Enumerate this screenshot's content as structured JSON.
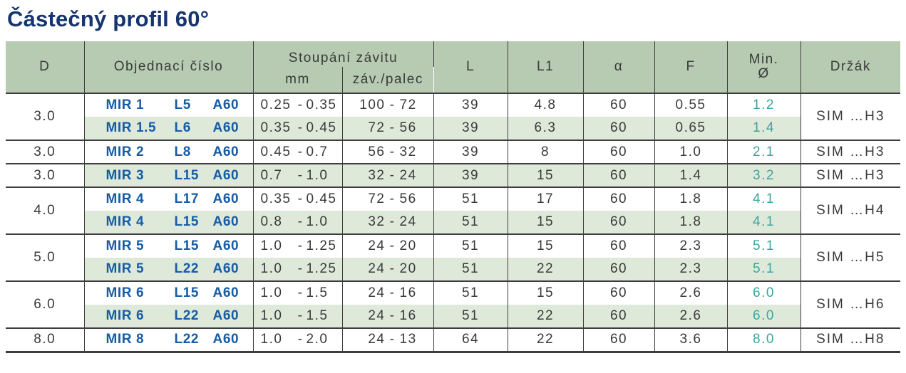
{
  "title": "Částečný profil 60°",
  "colors": {
    "title": "#16356D",
    "header_bg": "#B6CBB1",
    "row_alt_bg": "#DFE9DA",
    "order_blue": "#165CA6",
    "min_diameter_teal": "#3EA49F",
    "text": "#3A3A3A",
    "line": "#3D3D3D"
  },
  "table": {
    "separator": "-",
    "headers": {
      "d": "D",
      "order": "Objednací číslo",
      "pitch_group": "Stoupání závitu",
      "pitch_mm": "mm",
      "pitch_tpi": "záv./palec",
      "l": "L",
      "l1": "L1",
      "alpha": "α",
      "f": "F",
      "min_line1": "Min.",
      "min_line2": "Ø",
      "holder": "Držák"
    },
    "groups": [
      {
        "d": "3.0",
        "holder": "SIM …H3",
        "rows": [
          {
            "order": {
              "name": "MIR 1",
              "l": "L5",
              "a": "A60"
            },
            "mm_min": "0.25",
            "mm_max": "0.35",
            "tpi_min": "100",
            "tpi_max": "72",
            "l": "39",
            "l1": "4.8",
            "alpha": "60",
            "f": "0.55",
            "min_d": "1.2"
          },
          {
            "order": {
              "name": "MIR 1.5",
              "l": "L6",
              "a": "A60"
            },
            "mm_min": "0.35",
            "mm_max": "0.45",
            "tpi_min": "72",
            "tpi_max": "56",
            "l": "39",
            "l1": "6.3",
            "alpha": "60",
            "f": "0.65",
            "min_d": "1.4"
          }
        ]
      },
      {
        "d": "3.0",
        "holder": "SIM …H3",
        "rows": [
          {
            "order": {
              "name": "MIR 2",
              "l": "L8",
              "a": "A60"
            },
            "mm_min": "0.45",
            "mm_max": "0.7",
            "tpi_min": "56",
            "tpi_max": "32",
            "l": "39",
            "l1": "8",
            "alpha": "60",
            "f": "1.0",
            "min_d": "2.1"
          }
        ]
      },
      {
        "d": "3.0",
        "holder": "SIM …H3",
        "rows": [
          {
            "order": {
              "name": "MIR 3",
              "l": "L15",
              "a": "A60"
            },
            "mm_min": "0.7",
            "mm_max": "1.0",
            "tpi_min": "32",
            "tpi_max": "24",
            "l": "39",
            "l1": "15",
            "alpha": "60",
            "f": "1.4",
            "min_d": "3.2"
          }
        ]
      },
      {
        "d": "4.0",
        "holder": "SIM …H4",
        "rows": [
          {
            "order": {
              "name": "MIR 4",
              "l": "L17",
              "a": "A60"
            },
            "mm_min": "0.35",
            "mm_max": "0.45",
            "tpi_min": "72",
            "tpi_max": "56",
            "l": "51",
            "l1": "17",
            "alpha": "60",
            "f": "1.8",
            "min_d": "4.1"
          },
          {
            "order": {
              "name": "MIR 4",
              "l": "L15",
              "a": "A60"
            },
            "mm_min": "0.8",
            "mm_max": "1.0",
            "tpi_min": "32",
            "tpi_max": "24",
            "l": "51",
            "l1": "15",
            "alpha": "60",
            "f": "1.8",
            "min_d": "4.1"
          }
        ]
      },
      {
        "d": "5.0",
        "holder": "SIM …H5",
        "rows": [
          {
            "order": {
              "name": "MIR 5",
              "l": "L15",
              "a": "A60"
            },
            "mm_min": "1.0",
            "mm_max": "1.25",
            "tpi_min": "24",
            "tpi_max": "20",
            "l": "51",
            "l1": "15",
            "alpha": "60",
            "f": "2.3",
            "min_d": "5.1"
          },
          {
            "order": {
              "name": "MIR 5",
              "l": "L22",
              "a": "A60"
            },
            "mm_min": "1.0",
            "mm_max": "1.25",
            "tpi_min": "24",
            "tpi_max": "20",
            "l": "51",
            "l1": "22",
            "alpha": "60",
            "f": "2.3",
            "min_d": "5.1"
          }
        ]
      },
      {
        "d": "6.0",
        "holder": "SIM …H6",
        "rows": [
          {
            "order": {
              "name": "MIR 6",
              "l": "L15",
              "a": "A60"
            },
            "mm_min": "1.0",
            "mm_max": "1.5",
            "tpi_min": "24",
            "tpi_max": "16",
            "l": "51",
            "l1": "15",
            "alpha": "60",
            "f": "2.6",
            "min_d": "6.0"
          },
          {
            "order": {
              "name": "MIR 6",
              "l": "L22",
              "a": "A60"
            },
            "mm_min": "1.0",
            "mm_max": "1.5",
            "tpi_min": "24",
            "tpi_max": "16",
            "l": "51",
            "l1": "22",
            "alpha": "60",
            "f": "2.6",
            "min_d": "6.0"
          }
        ]
      },
      {
        "d": "8.0",
        "holder": "SIM …H8",
        "rows": [
          {
            "order": {
              "name": "MIR 8",
              "l": "L22",
              "a": "A60"
            },
            "mm_min": "1.0",
            "mm_max": "2.0",
            "tpi_min": "24",
            "tpi_max": "13",
            "l": "64",
            "l1": "22",
            "alpha": "60",
            "f": "3.6",
            "min_d": "8.0"
          }
        ]
      }
    ]
  }
}
